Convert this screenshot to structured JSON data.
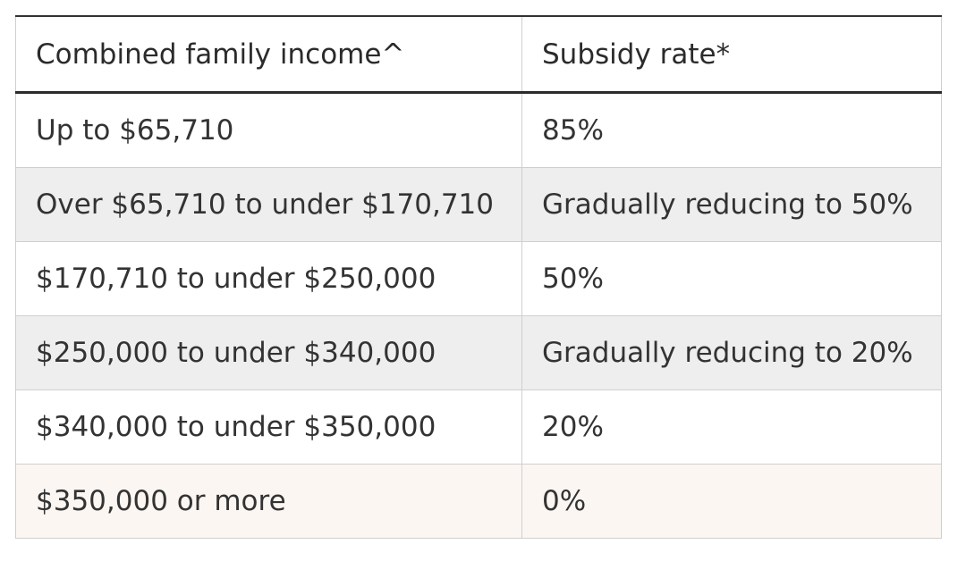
{
  "table": {
    "headers": [
      "Combined family income^",
      "Subsidy rate*"
    ],
    "rows": [
      [
        "Up to $65,710",
        "85%"
      ],
      [
        "Over $65,710 to under $170,710",
        "Gradually reducing to 50%"
      ],
      [
        "$170,710 to under $250,000",
        "50%"
      ],
      [
        "$250,000 to under $340,000",
        "Gradually reducing to 20%"
      ],
      [
        "$340,000 to under $350,000",
        "20%"
      ],
      [
        "$350,000 or more",
        "0%"
      ]
    ]
  }
}
